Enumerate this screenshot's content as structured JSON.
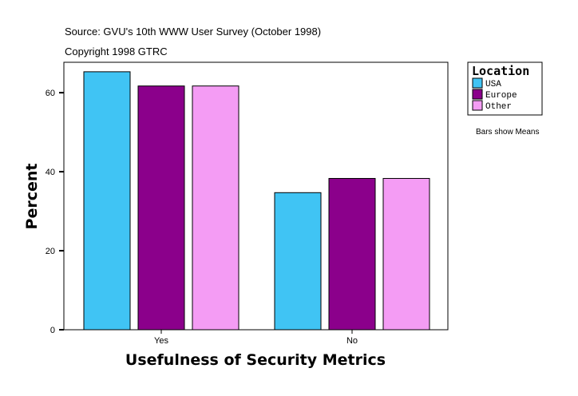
{
  "chart_data": {
    "type": "bar",
    "title": "Source: GVU's 10th WWW User Survey (October 1998)",
    "subtitle": "Copyright 1998 GTRC",
    "xlabel": "Usefulness of Security Metrics",
    "ylabel": "Percent",
    "categories": [
      "Yes",
      "No"
    ],
    "series": [
      {
        "name": "USA",
        "color": "#40C4F4",
        "values": [
          65.3,
          34.7
        ]
      },
      {
        "name": "Europe",
        "color": "#8B008B",
        "values": [
          61.7,
          38.3
        ]
      },
      {
        "name": "Other",
        "color": "#F49CF4",
        "values": [
          61.7,
          38.3
        ]
      }
    ],
    "ylim": [
      0,
      67.7
    ],
    "yticks": [
      0,
      20,
      40,
      60
    ],
    "grid": false,
    "legend": {
      "title": "Location",
      "placement": "right"
    },
    "note": "Bars show Means"
  }
}
